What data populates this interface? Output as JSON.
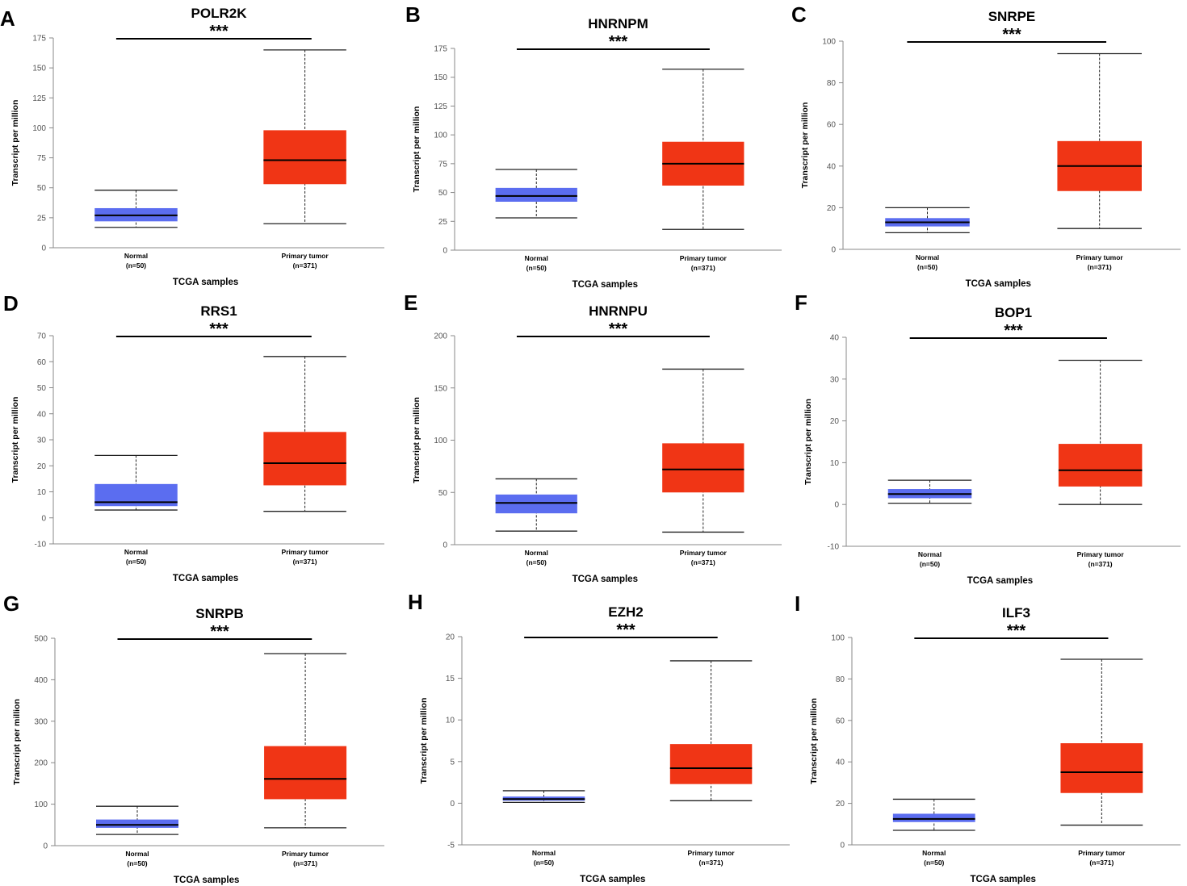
{
  "figure": {
    "y_axis_label": "Transcript per million",
    "x_axis_label": "TCGA samples",
    "colors": {
      "normal": "#5b6df0",
      "tumor": "#f03515",
      "median": "#000000"
    }
  },
  "chart_data": [
    {
      "type": "boxplot",
      "panel": "A",
      "title": "POLR2K",
      "significance": "***",
      "xlabel": "TCGA samples",
      "ylabel": "Transcript per million",
      "ylim": [
        0,
        175
      ],
      "yticks": [
        0,
        25,
        50,
        75,
        100,
        125,
        150,
        175
      ],
      "groups": [
        {
          "name": "Normal",
          "n_label": "(n=50)",
          "min": 17,
          "q1": 22,
          "median": 27,
          "q3": 33,
          "max": 48
        },
        {
          "name": "Primary tumor",
          "n_label": "(n=371)",
          "min": 20,
          "q1": 53,
          "median": 73,
          "q3": 98,
          "max": 165
        }
      ]
    },
    {
      "type": "boxplot",
      "panel": "B",
      "title": "HNRNPM",
      "significance": "***",
      "xlabel": "TCGA samples",
      "ylabel": "Transcript per million",
      "ylim": [
        0,
        175
      ],
      "yticks": [
        0,
        25,
        50,
        75,
        100,
        125,
        150,
        175
      ],
      "groups": [
        {
          "name": "Normal",
          "n_label": "(n=50)",
          "min": 28,
          "q1": 42,
          "median": 47,
          "q3": 54,
          "max": 70
        },
        {
          "name": "Primary tumor",
          "n_label": "(n=371)",
          "min": 18,
          "q1": 56,
          "median": 75,
          "q3": 94,
          "max": 157
        }
      ]
    },
    {
      "type": "boxplot",
      "panel": "C",
      "title": "SNRPE",
      "significance": "***",
      "xlabel": "TCGA samples",
      "ylabel": "Transcript per million",
      "ylim": [
        0,
        100
      ],
      "yticks": [
        0,
        20,
        40,
        60,
        80,
        100
      ],
      "groups": [
        {
          "name": "Normal",
          "n_label": "(n=50)",
          "min": 8,
          "q1": 11,
          "median": 13,
          "q3": 15,
          "max": 20
        },
        {
          "name": "Primary tumor",
          "n_label": "(n=371)",
          "min": 10,
          "q1": 28,
          "median": 40,
          "q3": 52,
          "max": 94
        }
      ]
    },
    {
      "type": "boxplot",
      "panel": "D",
      "title": "RRS1",
      "significance": "***",
      "xlabel": "TCGA samples",
      "ylabel": "Transcript per million",
      "ylim": [
        -10,
        70
      ],
      "yticks": [
        -10,
        0,
        10,
        20,
        30,
        40,
        50,
        60,
        70
      ],
      "groups": [
        {
          "name": "Normal",
          "n_label": "(n=50)",
          "min": 3,
          "q1": 4.5,
          "median": 6,
          "q3": 13,
          "max": 24
        },
        {
          "name": "Primary tumor",
          "n_label": "(n=371)",
          "min": 2.5,
          "q1": 12.5,
          "median": 21,
          "q3": 33,
          "max": 62
        }
      ]
    },
    {
      "type": "boxplot",
      "panel": "E",
      "title": "HNRNPU",
      "significance": "***",
      "xlabel": "TCGA samples",
      "ylabel": "Transcript per million",
      "ylim": [
        0,
        200
      ],
      "yticks": [
        0,
        50,
        100,
        150,
        200
      ],
      "groups": [
        {
          "name": "Normal",
          "n_label": "(n=50)",
          "min": 13,
          "q1": 30,
          "median": 40,
          "q3": 48,
          "max": 63
        },
        {
          "name": "Primary tumor",
          "n_label": "(n=371)",
          "min": 12,
          "q1": 50,
          "median": 72,
          "q3": 97,
          "max": 168
        }
      ]
    },
    {
      "type": "boxplot",
      "panel": "F",
      "title": "BOP1",
      "significance": "***",
      "xlabel": "TCGA samples",
      "ylabel": "Transcript per million",
      "ylim": [
        -10,
        40
      ],
      "yticks": [
        -10,
        0,
        10,
        20,
        30,
        40
      ],
      "groups": [
        {
          "name": "Normal",
          "n_label": "(n=50)",
          "min": 0.3,
          "q1": 1.5,
          "median": 2.5,
          "q3": 3.7,
          "max": 5.8
        },
        {
          "name": "Primary tumor",
          "n_label": "(n=371)",
          "min": 0,
          "q1": 4.3,
          "median": 8.2,
          "q3": 14.5,
          "max": 34.5
        }
      ]
    },
    {
      "type": "boxplot",
      "panel": "G",
      "title": "SNRPB",
      "significance": "***",
      "xlabel": "TCGA samples",
      "ylabel": "Transcript per million",
      "ylim": [
        0,
        500
      ],
      "yticks": [
        0,
        100,
        200,
        300,
        400,
        500
      ],
      "groups": [
        {
          "name": "Normal",
          "n_label": "(n=50)",
          "min": 27,
          "q1": 43,
          "median": 50,
          "q3": 63,
          "max": 95
        },
        {
          "name": "Primary tumor",
          "n_label": "(n=371)",
          "min": 43,
          "q1": 112,
          "median": 161,
          "q3": 240,
          "max": 463
        }
      ]
    },
    {
      "type": "boxplot",
      "panel": "H",
      "title": "EZH2",
      "significance": "***",
      "xlabel": "TCGA samples",
      "ylabel": "Transcript per million",
      "ylim": [
        -5,
        20
      ],
      "yticks": [
        -5,
        0,
        5,
        10,
        15,
        20
      ],
      "groups": [
        {
          "name": "Normal",
          "n_label": "(n=50)",
          "min": 0.1,
          "q1": 0.3,
          "median": 0.5,
          "q3": 0.8,
          "max": 1.5
        },
        {
          "name": "Primary tumor",
          "n_label": "(n=371)",
          "min": 0.3,
          "q1": 2.3,
          "median": 4.2,
          "q3": 7.1,
          "max": 17.1
        }
      ]
    },
    {
      "type": "boxplot",
      "panel": "I",
      "title": "ILF3",
      "significance": "***",
      "xlabel": "TCGA samples",
      "ylabel": "Transcript per million",
      "ylim": [
        0,
        100
      ],
      "yticks": [
        0,
        20,
        40,
        60,
        80,
        100
      ],
      "groups": [
        {
          "name": "Normal",
          "n_label": "(n=50)",
          "min": 7,
          "q1": 11,
          "median": 12.5,
          "q3": 15,
          "max": 22
        },
        {
          "name": "Primary tumor",
          "n_label": "(n=371)",
          "min": 9.5,
          "q1": 25,
          "median": 35,
          "q3": 49,
          "max": 89.5
        }
      ]
    }
  ]
}
